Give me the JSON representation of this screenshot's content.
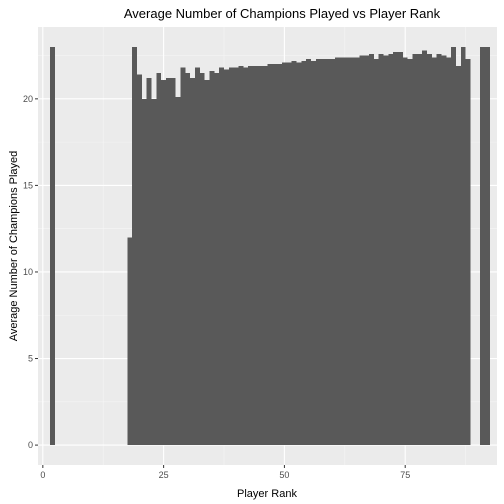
{
  "chart_data": {
    "type": "bar",
    "title": "Average Number of Champions Played vs Player Rank",
    "xlabel": "Player Rank",
    "ylabel": "Average Number of Champions Played",
    "xlim": [
      -1,
      94
    ],
    "ylim": [
      -1.15,
      24.15
    ],
    "x_ticks": [
      0,
      25,
      50,
      75
    ],
    "y_ticks": [
      0,
      5,
      10,
      15,
      20
    ],
    "grid": true,
    "legend": "none",
    "colors": {
      "bar": "#595959",
      "panel": "#ebebeb",
      "grid_major": "#ffffff",
      "grid_minor": "#f5f5f5"
    },
    "bar_width": 1,
    "x": [
      2,
      18,
      19,
      20,
      21,
      22,
      23,
      24,
      25,
      26,
      27,
      28,
      29,
      30,
      31,
      32,
      33,
      34,
      35,
      36,
      37,
      38,
      39,
      40,
      41,
      42,
      43,
      44,
      45,
      46,
      47,
      48,
      49,
      50,
      51,
      52,
      53,
      54,
      55,
      56,
      57,
      58,
      59,
      60,
      61,
      62,
      63,
      64,
      65,
      66,
      67,
      68,
      69,
      70,
      71,
      72,
      73,
      74,
      75,
      76,
      77,
      78,
      79,
      80,
      81,
      82,
      83,
      84,
      85,
      86,
      87,
      88,
      91,
      92
    ],
    "values": [
      23,
      12,
      23,
      21.4,
      20,
      21.2,
      20,
      21.5,
      21.1,
      21.2,
      21.2,
      20.1,
      21.8,
      21.5,
      21.2,
      21.8,
      21.5,
      21.1,
      21.6,
      21.5,
      21.8,
      21.7,
      21.8,
      21.8,
      21.9,
      21.8,
      21.9,
      21.9,
      21.9,
      21.9,
      22,
      22,
      22,
      22.1,
      22.1,
      22.2,
      22.1,
      22.2,
      22.3,
      22.2,
      22.3,
      22.3,
      22.3,
      22.3,
      22.4,
      22.4,
      22.4,
      22.4,
      22.4,
      22.5,
      22.5,
      22.6,
      22.3,
      22.6,
      22.5,
      22.6,
      22.7,
      22.7,
      22.4,
      22.3,
      22.6,
      22.6,
      22.8,
      22.6,
      22.4,
      22.6,
      22.5,
      22.4,
      23,
      21.9,
      23,
      22.3,
      23,
      23
    ]
  }
}
